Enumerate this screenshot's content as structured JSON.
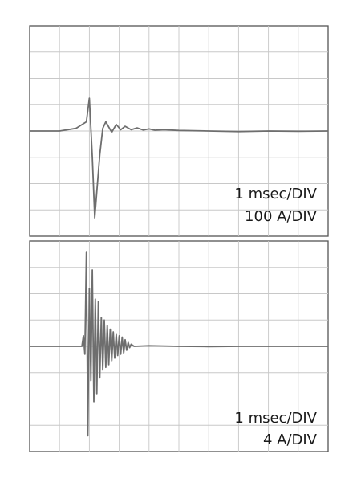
{
  "chart_data": [
    {
      "type": "line",
      "time_scale": "1 msec/DIV",
      "amplitude_scale": "100 A/DIV",
      "divisions": {
        "x": 10,
        "y": 8
      },
      "grid": true,
      "series": [
        {
          "x": [
            0,
            1.0,
            1.55,
            1.9,
            2.0,
            2.05,
            2.1,
            2.18,
            2.25,
            2.35,
            2.45,
            2.55,
            2.65,
            2.75,
            2.9,
            3.05,
            3.2,
            3.4,
            3.6,
            3.8,
            4.0,
            4.2,
            4.5,
            5.0,
            6.0,
            7.0,
            8.0,
            9.0,
            10.0
          ],
          "y": [
            0.0,
            0.0,
            0.1,
            0.35,
            1.25,
            0.1,
            -1.0,
            -3.3,
            -2.3,
            -0.9,
            0.1,
            0.35,
            0.15,
            -0.05,
            0.25,
            0.05,
            0.18,
            0.05,
            0.12,
            0.04,
            0.08,
            0.03,
            0.05,
            0.02,
            0.0,
            -0.02,
            0.0,
            -0.01,
            0.0
          ]
        }
      ]
    },
    {
      "type": "line",
      "time_scale": "1 msec/DIV",
      "amplitude_scale": "4 A/DIV",
      "divisions": {
        "x": 10,
        "y": 8
      },
      "grid": true,
      "series": [
        {
          "x": [
            0,
            1.0,
            1.75,
            1.8,
            1.85,
            1.9,
            1.95,
            2.0,
            2.05,
            2.1,
            2.15,
            2.2,
            2.25,
            2.3,
            2.35,
            2.4,
            2.45,
            2.5,
            2.55,
            2.6,
            2.65,
            2.7,
            2.75,
            2.8,
            2.85,
            2.9,
            2.95,
            3.0,
            3.05,
            3.1,
            3.15,
            3.2,
            3.25,
            3.3,
            3.35,
            3.4,
            3.5,
            4.0,
            5.0,
            6.0,
            7.0,
            8.0,
            9.0,
            10.0
          ],
          "y": [
            0.0,
            0.0,
            0.0,
            0.4,
            -0.3,
            3.6,
            -3.4,
            2.2,
            -1.3,
            2.9,
            -2.1,
            1.8,
            -1.8,
            1.7,
            -1.2,
            1.1,
            -0.9,
            1.0,
            -0.8,
            0.8,
            -0.7,
            0.65,
            -0.55,
            0.55,
            -0.45,
            0.45,
            -0.35,
            0.4,
            -0.3,
            0.35,
            -0.25,
            0.25,
            -0.15,
            0.15,
            -0.05,
            0.08,
            0.0,
            0.02,
            0.0,
            -0.01,
            0.0,
            0.0,
            0.0,
            0.0
          ]
        }
      ]
    }
  ]
}
